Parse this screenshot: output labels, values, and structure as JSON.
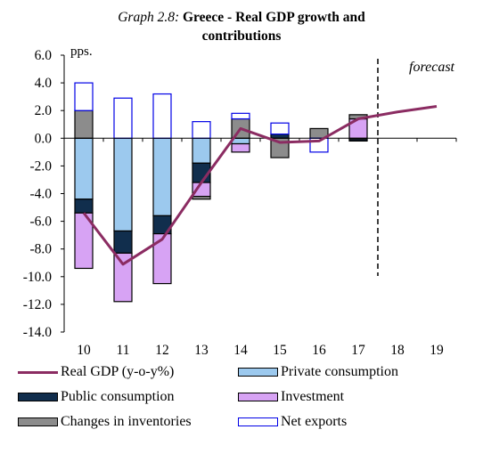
{
  "title": {
    "prefix": "Graph 2.8:",
    "main_line1": "Greece - Real GDP growth and",
    "main_line2": "contributions"
  },
  "colors": {
    "real_gdp": "#8b2c62",
    "private_consumption": "#9cc9ee",
    "public_consumption": "#112e4d",
    "investment": "#d7a3f4",
    "changes_in_inventories": "#8c8c8c",
    "net_exports": "#ffffff",
    "net_exports_border": "#0000e6"
  },
  "legend": {
    "real_gdp": "Real GDP (y-o-y%)",
    "private_consumption": "Private consumption",
    "public_consumption": "Public consumption",
    "investment": "Investment",
    "changes_in_inventories": "Changes in inventories",
    "net_exports": "Net exports"
  },
  "chart_data": {
    "type": "bar",
    "stacked": true,
    "title": "Greece - Real GDP growth and contributions",
    "ylabel": "pps.",
    "annotation": "forecast",
    "forecast_after": "17",
    "categories": [
      "10",
      "11",
      "12",
      "13",
      "14",
      "15",
      "16",
      "17",
      "18",
      "19"
    ],
    "ylim": [
      -14,
      6
    ],
    "yticks": [
      "6.0",
      "4.0",
      "2.0",
      "0.0",
      "-2.0",
      "-4.0",
      "-6.0",
      "-8.0",
      "-10.0",
      "-12.0",
      "-14.0"
    ],
    "legend_position": "bottom",
    "series": [
      {
        "name": "Private consumption",
        "type": "bar",
        "values": [
          -4.4,
          -6.7,
          -5.6,
          -1.8,
          -0.4,
          0.0,
          0.0,
          -0.1,
          null,
          null
        ]
      },
      {
        "name": "Public consumption",
        "type": "bar",
        "values": [
          -1.0,
          -1.6,
          -1.3,
          -1.4,
          0.0,
          0.3,
          0.0,
          -0.1,
          null,
          null
        ]
      },
      {
        "name": "Investment",
        "type": "bar",
        "values": [
          -4.0,
          -3.5,
          -3.6,
          -1.0,
          -0.6,
          0.0,
          0.0,
          1.4,
          null,
          null
        ]
      },
      {
        "name": "Changes in inventories",
        "type": "bar",
        "values": [
          2.0,
          0.0,
          0.0,
          -0.2,
          1.4,
          -1.4,
          0.7,
          0.3,
          null,
          null
        ]
      },
      {
        "name": "Net exports",
        "type": "bar",
        "values": [
          2.0,
          2.9,
          3.2,
          1.2,
          0.4,
          0.8,
          -1.0,
          0.0,
          null,
          null
        ]
      },
      {
        "name": "Real GDP (y-o-y%)",
        "type": "line",
        "values": [
          -5.4,
          -9.1,
          -7.3,
          -3.2,
          0.7,
          -0.3,
          -0.2,
          1.4,
          1.9,
          2.3
        ]
      }
    ]
  }
}
